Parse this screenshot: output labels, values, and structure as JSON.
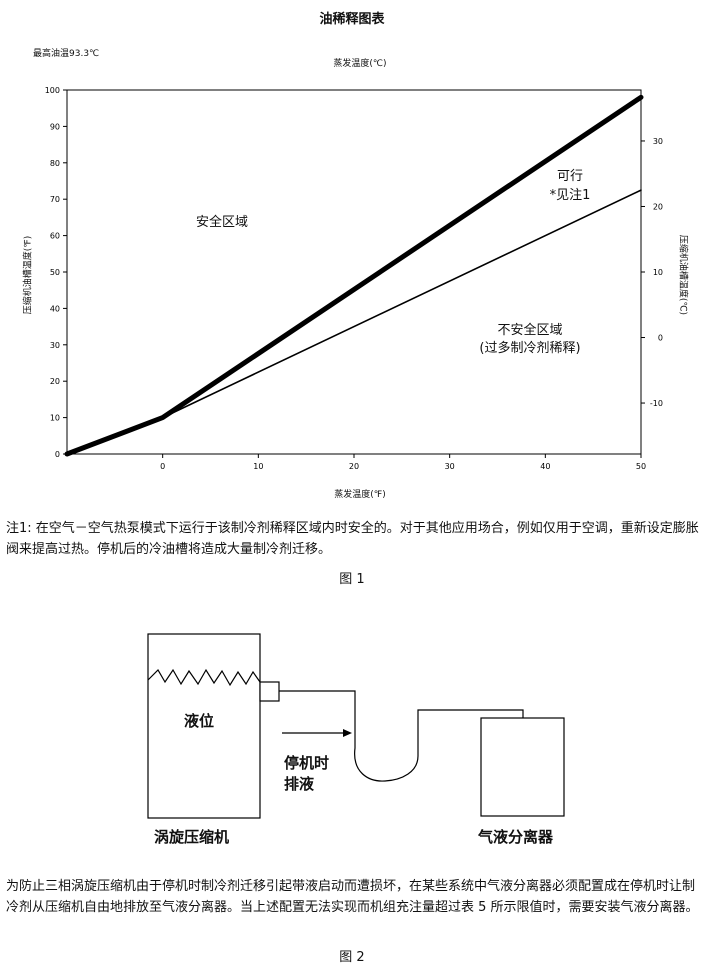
{
  "chart_data": {
    "type": "line",
    "title": "油稀释图表",
    "subtitle": "最高油温93.3℃",
    "x_top_label": "蒸发温度(℃)",
    "xlabel": "蒸发温度(℉)",
    "ylabel": "压缩机油槽温度(℉)",
    "ylabel_right": "压缩机油槽温度(℃)",
    "xlim": [
      -10,
      50
    ],
    "ylim": [
      0,
      100
    ],
    "x_ticks": [
      "0",
      "10",
      "20",
      "30",
      "40",
      "50"
    ],
    "y_ticks": [
      "0",
      "10",
      "20",
      "30",
      "40",
      "50",
      "60",
      "70",
      "80",
      "90",
      "100"
    ],
    "y_right_ticks": [
      "-10",
      "0",
      "10",
      "20",
      "30"
    ],
    "y_right_tick_values": [
      -10,
      0,
      10,
      20,
      30
    ],
    "series": [
      {
        "x": [
          -10,
          0,
          50
        ],
        "y": [
          0,
          10,
          98
        ],
        "style": "thick"
      },
      {
        "x": [
          -10,
          0,
          50
        ],
        "y": [
          0,
          10,
          72.5
        ],
        "style": "thin"
      }
    ],
    "zones": {
      "safe": "安全区域",
      "feasible_line1": "可行",
      "feasible_line2": "*见注1",
      "unsafe_line1": "不安全区域",
      "unsafe_line2": "(过多制冷剂稀释)"
    }
  },
  "note1": "注1: 在空气－空气热泵模式下运行于该制冷剂稀释区域内时安全的。对于其他应用场合，例如仅用于空调，重新设定膨胀阀来提高过热。停机后的冷油槽将造成大量制冷剂迁移。",
  "fig1_caption": "图 1",
  "diagram": {
    "liquid_level": "液位",
    "drain_line1": "停机时",
    "drain_line2": "排液",
    "compressor": "涡旋压缩机",
    "separator": "气液分离器"
  },
  "paragraph": "为防止三相涡旋压缩机由于停机时制冷剂迁移引起带液启动而遭损坏，在某些系统中气液分离器必须配置成在停机时让制冷剂从压缩机自由地排放至气液分离器。当上述配置无法实现而机组充注量超过表 5 所示限值时，需要安装气液分离器。",
  "fig2_caption": "图 2"
}
